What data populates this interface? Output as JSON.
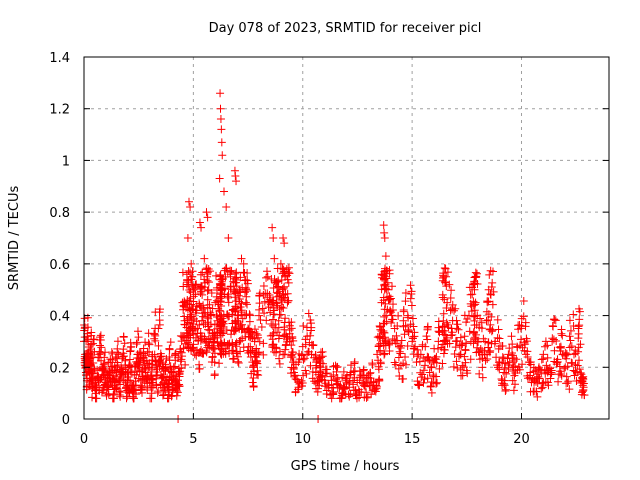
{
  "chart_data": {
    "type": "scatter",
    "title": "Day 078 of 2023, SRMTID for receiver picl",
    "xlabel": "GPS time / hours",
    "ylabel": "SRMTID / TECUs",
    "xlim": [
      0,
      24
    ],
    "ylim": [
      0,
      1.4
    ],
    "xticks": [
      0,
      5,
      10,
      15,
      20
    ],
    "xtick_labels": [
      "0",
      "5",
      "10",
      "15",
      "20"
    ],
    "yticks": [
      0,
      0.2,
      0.4,
      0.6,
      0.8,
      1.0,
      1.2,
      1.4
    ],
    "ytick_labels": [
      "0",
      "0.2",
      "0.4",
      "0.6",
      "0.8",
      "1",
      "1.2",
      "1.4"
    ],
    "grid": true,
    "legend": "none",
    "marker": "+",
    "series_color": "#ff0000",
    "series": [
      {
        "name": "SRMTID",
        "points": [
          [
            0.0,
            0.3
          ],
          [
            0.05,
            0.25
          ],
          [
            0.1,
            0.2
          ],
          [
            0.15,
            0.33
          ],
          [
            0.2,
            0.22
          ],
          [
            0.25,
            0.18
          ],
          [
            0.3,
            0.27
          ],
          [
            0.35,
            0.15
          ],
          [
            0.4,
            0.24
          ],
          [
            0.5,
            0.12
          ],
          [
            0.6,
            0.19
          ],
          [
            0.7,
            0.25
          ],
          [
            0.8,
            0.16
          ],
          [
            0.9,
            0.21
          ],
          [
            1.0,
            0.14
          ],
          [
            1.1,
            0.17
          ],
          [
            1.2,
            0.22
          ],
          [
            1.3,
            0.13
          ],
          [
            1.4,
            0.19
          ],
          [
            1.5,
            0.24
          ],
          [
            1.6,
            0.15
          ],
          [
            1.7,
            0.2
          ],
          [
            1.8,
            0.27
          ],
          [
            1.9,
            0.14
          ],
          [
            2.0,
            0.18
          ],
          [
            2.1,
            0.23
          ],
          [
            2.2,
            0.11
          ],
          [
            2.3,
            0.17
          ],
          [
            2.4,
            0.29
          ],
          [
            2.5,
            0.2
          ],
          [
            2.6,
            0.15
          ],
          [
            2.7,
            0.24
          ],
          [
            2.8,
            0.19
          ],
          [
            2.9,
            0.26
          ],
          [
            3.0,
            0.14
          ],
          [
            3.1,
            0.21
          ],
          [
            3.2,
            0.33
          ],
          [
            3.3,
            0.17
          ],
          [
            3.4,
            0.35
          ],
          [
            3.5,
            0.22
          ],
          [
            3.6,
            0.16
          ],
          [
            3.7,
            0.19
          ],
          [
            3.8,
            0.12
          ],
          [
            3.9,
            0.24
          ],
          [
            4.0,
            0.15
          ],
          [
            4.1,
            0.2
          ],
          [
            4.2,
            0.13
          ],
          [
            4.3,
            0.0
          ],
          [
            4.4,
            0.27
          ],
          [
            4.5,
            0.45
          ],
          [
            4.6,
            0.38
          ],
          [
            4.7,
            0.52
          ],
          [
            4.75,
            0.7
          ],
          [
            4.8,
            0.84
          ],
          [
            4.85,
            0.82
          ],
          [
            4.9,
            0.6
          ],
          [
            4.95,
            0.55
          ],
          [
            5.0,
            0.5
          ],
          [
            5.1,
            0.42
          ],
          [
            5.2,
            0.35
          ],
          [
            5.3,
            0.76
          ],
          [
            5.35,
            0.74
          ],
          [
            5.4,
            0.48
          ],
          [
            5.5,
            0.62
          ],
          [
            5.6,
            0.8
          ],
          [
            5.65,
            0.78
          ],
          [
            5.7,
            0.58
          ],
          [
            5.8,
            0.4
          ],
          [
            5.9,
            0.3
          ],
          [
            6.0,
            0.45
          ],
          [
            6.1,
            0.38
          ],
          [
            6.2,
            0.93
          ],
          [
            6.22,
            1.26
          ],
          [
            6.24,
            1.2
          ],
          [
            6.26,
            1.16
          ],
          [
            6.28,
            1.12
          ],
          [
            6.3,
            1.07
          ],
          [
            6.32,
            1.02
          ],
          [
            6.4,
            0.88
          ],
          [
            6.5,
            0.82
          ],
          [
            6.6,
            0.7
          ],
          [
            6.7,
            0.55
          ],
          [
            6.8,
            0.42
          ],
          [
            6.9,
            0.96
          ],
          [
            6.92,
            0.94
          ],
          [
            6.95,
            0.92
          ],
          [
            7.0,
            0.38
          ],
          [
            7.1,
            0.5
          ],
          [
            7.2,
            0.62
          ],
          [
            7.3,
            0.6
          ],
          [
            7.4,
            0.45
          ],
          [
            7.5,
            0.35
          ],
          [
            7.6,
            0.28
          ],
          [
            7.7,
            0.22
          ],
          [
            7.8,
            0.3
          ],
          [
            7.9,
            0.25
          ],
          [
            8.0,
            0.4
          ],
          [
            8.2,
            0.48
          ],
          [
            8.4,
            0.55
          ],
          [
            8.6,
            0.74
          ],
          [
            8.65,
            0.7
          ],
          [
            8.7,
            0.62
          ],
          [
            8.8,
            0.45
          ],
          [
            8.9,
            0.38
          ],
          [
            9.0,
            0.6
          ],
          [
            9.1,
            0.7
          ],
          [
            9.15,
            0.68
          ],
          [
            9.2,
            0.55
          ],
          [
            9.3,
            0.45
          ],
          [
            9.4,
            0.3
          ],
          [
            9.5,
            0.25
          ],
          [
            9.6,
            0.18
          ],
          [
            9.8,
            0.22
          ],
          [
            10.0,
            0.28
          ],
          [
            10.2,
            0.32
          ],
          [
            10.4,
            0.25
          ],
          [
            10.6,
            0.18
          ],
          [
            10.7,
            0.0
          ],
          [
            10.8,
            0.2
          ],
          [
            11.0,
            0.15
          ],
          [
            11.2,
            0.13
          ],
          [
            11.4,
            0.17
          ],
          [
            11.6,
            0.12
          ],
          [
            11.8,
            0.16
          ],
          [
            12.0,
            0.14
          ],
          [
            12.2,
            0.18
          ],
          [
            12.4,
            0.11
          ],
          [
            12.6,
            0.15
          ],
          [
            12.8,
            0.13
          ],
          [
            13.0,
            0.17
          ],
          [
            13.2,
            0.12
          ],
          [
            13.4,
            0.25
          ],
          [
            13.5,
            0.32
          ],
          [
            13.6,
            0.45
          ],
          [
            13.7,
            0.75
          ],
          [
            13.72,
            0.72
          ],
          [
            13.75,
            0.7
          ],
          [
            13.8,
            0.63
          ],
          [
            13.9,
            0.5
          ],
          [
            14.0,
            0.42
          ],
          [
            14.2,
            0.35
          ],
          [
            14.4,
            0.28
          ],
          [
            14.6,
            0.38
          ],
          [
            14.8,
            0.4
          ],
          [
            15.0,
            0.3
          ],
          [
            15.2,
            0.22
          ],
          [
            15.4,
            0.25
          ],
          [
            15.6,
            0.28
          ],
          [
            15.8,
            0.18
          ],
          [
            16.0,
            0.22
          ],
          [
            16.2,
            0.3
          ],
          [
            16.4,
            0.48
          ],
          [
            16.45,
            0.55
          ],
          [
            16.5,
            0.53
          ],
          [
            16.6,
            0.45
          ],
          [
            16.8,
            0.35
          ],
          [
            17.0,
            0.3
          ],
          [
            17.2,
            0.25
          ],
          [
            17.4,
            0.32
          ],
          [
            17.6,
            0.4
          ],
          [
            17.8,
            0.52
          ],
          [
            17.85,
            0.5
          ],
          [
            17.9,
            0.45
          ],
          [
            18.0,
            0.3
          ],
          [
            18.2,
            0.25
          ],
          [
            18.4,
            0.38
          ],
          [
            18.5,
            0.5
          ],
          [
            18.6,
            0.48
          ],
          [
            18.8,
            0.3
          ],
          [
            19.0,
            0.22
          ],
          [
            19.2,
            0.18
          ],
          [
            19.4,
            0.25
          ],
          [
            19.6,
            0.2
          ],
          [
            19.8,
            0.28
          ],
          [
            20.0,
            0.36
          ],
          [
            20.2,
            0.25
          ],
          [
            20.4,
            0.18
          ],
          [
            20.6,
            0.15
          ],
          [
            20.8,
            0.2
          ],
          [
            21.0,
            0.25
          ],
          [
            21.2,
            0.18
          ],
          [
            21.4,
            0.3
          ],
          [
            21.6,
            0.22
          ],
          [
            21.8,
            0.28
          ],
          [
            22.0,
            0.2
          ],
          [
            22.2,
            0.32
          ],
          [
            22.4,
            0.25
          ],
          [
            22.6,
            0.35
          ],
          [
            22.7,
            0.15
          ],
          [
            22.8,
            0.13
          ]
        ]
      }
    ]
  }
}
